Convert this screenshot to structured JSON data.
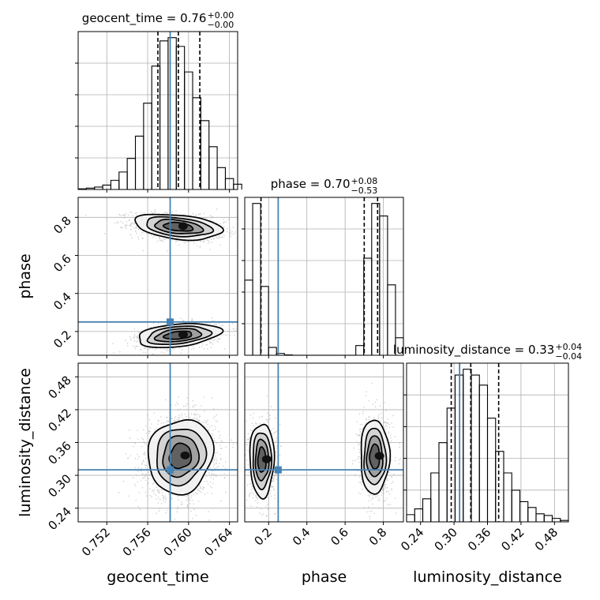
{
  "chart_data": {
    "type": "corner",
    "parameters": [
      "geocent_time",
      "phase",
      "luminosity_distance"
    ],
    "titles": [
      {
        "label": "geocent_time",
        "median": "0.76",
        "plus": "+0.00",
        "minus": "−0.00"
      },
      {
        "label": "phase",
        "median": "0.70",
        "plus": "+0.08",
        "minus": "−0.53"
      },
      {
        "label": "luminosity_distance",
        "median": "0.33",
        "plus": "+0.04",
        "minus": "−0.04"
      }
    ],
    "axis_labels": {
      "geocent_time": "geocent_time",
      "phase": "phase",
      "luminosity_distance": "luminosity_distance"
    },
    "ranges": {
      "geocent_time": [
        0.7492,
        0.7648
      ],
      "phase": [
        0.075,
        0.905
      ],
      "luminosity_distance": [
        0.215,
        0.505
      ]
    },
    "ticks": {
      "geocent_time": [
        "0.752",
        "0.756",
        "0.760",
        "0.764"
      ],
      "phase": [
        "0.2",
        "0.4",
        "0.6",
        "0.8"
      ],
      "luminosity_distance": [
        "0.24",
        "0.30",
        "0.36",
        "0.42",
        "0.48"
      ]
    },
    "injection": {
      "geocent_time": 0.7582,
      "phase": 0.25,
      "luminosity_distance": 0.31
    },
    "quantiles": {
      "geocent_time": [
        0.757,
        0.759,
        0.7611
      ],
      "phase": [
        0.16,
        0.7,
        0.77
      ],
      "luminosity_distance": [
        0.295,
        0.33,
        0.38
      ]
    },
    "histograms": {
      "geocent_time": {
        "edges": [
          0.7492,
          0.75,
          0.7508,
          0.7516,
          0.7524,
          0.7532,
          0.754,
          0.7548,
          0.7556,
          0.7564,
          0.7572,
          0.758,
          0.7588,
          0.7596,
          0.7604,
          0.7612,
          0.762,
          0.7628,
          0.7636,
          0.7644,
          0.7652
        ],
        "values": [
          0.3,
          0.6,
          1.1,
          2.0,
          4.2,
          8.0,
          14.2,
          24.4,
          39.5,
          56.5,
          68.0,
          69.5,
          65.5,
          53.8,
          42.0,
          31.5,
          19.6,
          10.0,
          5.0,
          2.4
        ]
      },
      "phase": {
        "edges": [
          0.075,
          0.1165,
          0.158,
          0.1995,
          0.241,
          0.2825,
          0.324,
          0.3655,
          0.407,
          0.4485,
          0.49,
          0.5315,
          0.573,
          0.6145,
          0.656,
          0.6975,
          0.739,
          0.7805,
          0.822,
          0.8635,
          0.905
        ],
        "values": [
          24.0,
          48.5,
          22.0,
          2.5,
          0.6,
          0.1,
          0,
          0,
          0,
          0,
          0,
          0,
          0,
          0,
          3.1,
          31.0,
          48.5,
          44.5,
          22.5,
          5.6
        ]
      },
      "luminosity_distance": {
        "edges": [
          0.215,
          0.2295,
          0.244,
          0.2585,
          0.273,
          0.2875,
          0.302,
          0.3165,
          0.331,
          0.3455,
          0.36,
          0.3745,
          0.389,
          0.4035,
          0.418,
          0.4325,
          0.447,
          0.4615,
          0.476,
          0.4905,
          0.505
        ],
        "values": [
          2.5,
          4.5,
          8.0,
          17.0,
          27.5,
          39.5,
          51.0,
          53.0,
          51.0,
          47.5,
          36.0,
          24.5,
          17.0,
          11.0,
          7.0,
          5.0,
          2.8,
          2.2,
          1.2,
          0.5
        ]
      }
    },
    "densities_2d": [
      {
        "x": "geocent_time",
        "y": "phase",
        "clusters": [
          {
            "center": [
              0.759,
              0.75
            ],
            "sigma": [
              0.00215,
              0.032
            ],
            "weight": 0.6,
            "tilt": -0.35
          },
          {
            "center": [
              0.759,
              0.18
            ],
            "sigma": [
              0.00205,
              0.03
            ],
            "weight": 0.4,
            "tilt": 0.35
          }
        ]
      },
      {
        "x": "geocent_time",
        "y": "luminosity_distance",
        "clusters": [
          {
            "center": [
              0.7592,
              0.335
            ],
            "sigma": [
              0.0016,
              0.034
            ],
            "weight": 1.0,
            "tilt": 0.1
          }
        ]
      },
      {
        "x": "phase",
        "y": "luminosity_distance",
        "clusters": [
          {
            "center": [
              0.165,
              0.328
            ],
            "sigma": [
              0.032,
              0.034
            ],
            "weight": 0.4,
            "tilt": 0
          },
          {
            "center": [
              0.755,
              0.334
            ],
            "sigma": [
              0.038,
              0.034
            ],
            "weight": 0.6,
            "tilt": 0
          }
        ]
      }
    ],
    "colors": {
      "truth": "#4682b4",
      "hist": "#000000",
      "grid": "#b0b0b0"
    },
    "grid": true
  }
}
